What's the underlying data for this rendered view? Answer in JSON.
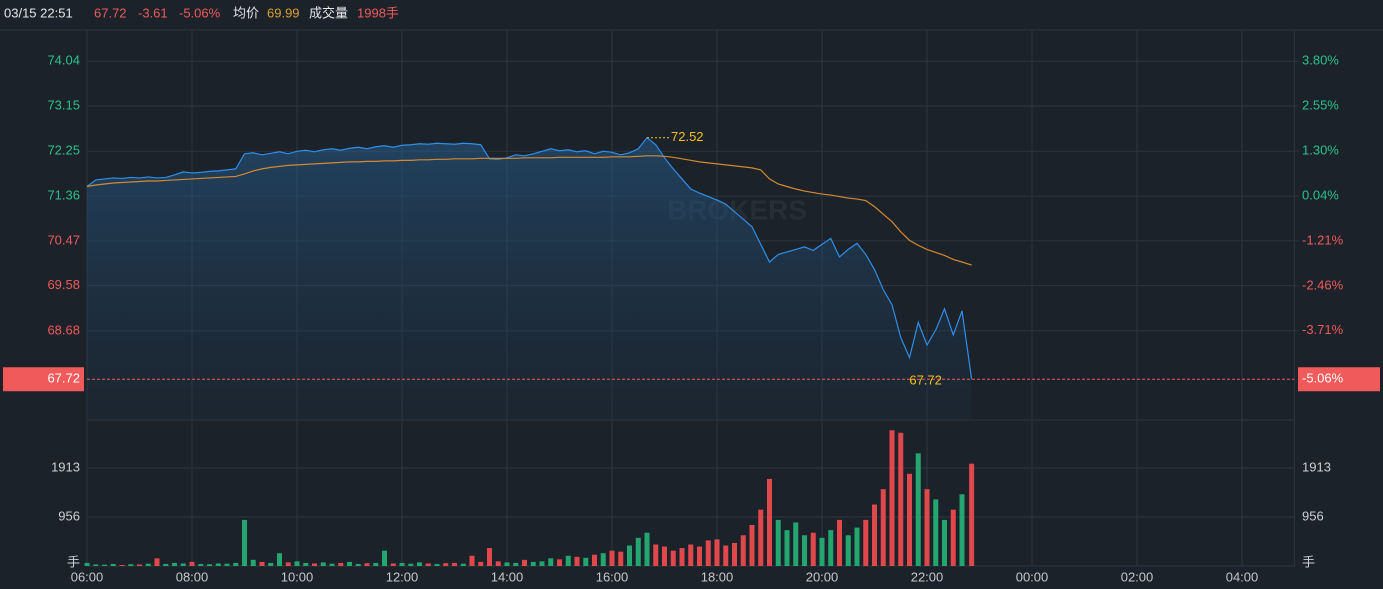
{
  "header": {
    "time": "03/15 22:51",
    "change": "-3.61",
    "avg_label": "均价",
    "avg": "69.99",
    "volume_label": "成交量",
    "volume": "1998手"
  },
  "watermark": "BROKERS",
  "chart_data": [
    {
      "type": "line",
      "x": [
        0,
        10,
        20,
        30,
        40,
        50,
        60,
        70,
        80,
        90,
        100,
        110,
        120,
        130,
        140,
        150,
        160,
        170,
        180,
        190,
        200,
        210,
        220,
        230,
        240,
        250,
        260,
        270,
        280,
        290,
        300,
        310,
        320,
        330,
        340,
        350,
        360,
        370,
        380,
        390,
        400,
        410,
        420,
        430,
        440,
        450,
        460,
        470,
        480,
        490,
        500,
        510,
        520,
        530,
        540,
        550,
        560,
        570,
        580,
        590,
        600,
        610,
        620,
        630,
        640,
        650,
        660,
        670,
        680,
        690,
        700,
        710,
        720,
        730,
        740,
        750,
        760,
        770,
        780,
        790,
        800,
        810,
        820,
        830,
        840,
        850,
        860,
        870,
        880,
        890,
        900,
        910,
        920,
        930,
        940,
        950,
        960,
        970,
        980,
        990,
        1000,
        1011
      ],
      "series": [
        {
          "color": "#2f8ee8",
          "values": [
            71.55,
            71.68,
            71.7,
            71.72,
            71.71,
            71.73,
            71.72,
            71.74,
            71.72,
            71.73,
            71.78,
            71.84,
            71.82,
            71.83,
            71.85,
            71.86,
            71.88,
            71.9,
            72.2,
            72.22,
            72.18,
            72.21,
            72.24,
            72.2,
            72.25,
            72.27,
            72.24,
            72.28,
            72.3,
            72.27,
            72.31,
            72.33,
            72.3,
            72.34,
            72.36,
            72.33,
            72.37,
            72.38,
            72.4,
            72.39,
            72.41,
            72.4,
            72.39,
            72.41,
            72.4,
            72.38,
            72.1,
            72.09,
            72.12,
            72.18,
            72.16,
            72.2,
            72.25,
            72.3,
            72.26,
            72.28,
            72.24,
            72.26,
            72.2,
            72.25,
            72.23,
            72.18,
            72.22,
            72.3,
            72.52,
            72.38,
            72.12,
            71.9,
            71.7,
            71.5,
            71.42,
            71.35,
            71.28,
            71.2,
            71.05,
            70.9,
            70.75,
            70.4,
            70.05,
            70.2,
            70.25,
            70.3,
            70.35,
            70.28,
            70.4,
            70.52,
            70.15,
            70.3,
            70.42,
            70.2,
            69.9,
            69.5,
            69.2,
            68.55,
            68.15,
            68.85,
            68.4,
            68.7,
            69.12,
            68.6,
            69.08,
            67.72
          ]
        },
        {
          "color": "#d4892e",
          "values": [
            71.55,
            71.58,
            71.6,
            71.62,
            71.63,
            71.64,
            71.65,
            71.66,
            71.66,
            71.67,
            71.68,
            71.69,
            71.7,
            71.71,
            71.72,
            71.73,
            71.74,
            71.75,
            71.8,
            71.86,
            71.9,
            71.93,
            71.95,
            71.97,
            71.98,
            71.99,
            72.0,
            72.01,
            72.02,
            72.03,
            72.04,
            72.04,
            72.05,
            72.05,
            72.06,
            72.06,
            72.07,
            72.07,
            72.08,
            72.08,
            72.09,
            72.09,
            72.1,
            72.1,
            72.1,
            72.11,
            72.11,
            72.11,
            72.11,
            72.11,
            72.12,
            72.12,
            72.12,
            72.12,
            72.13,
            72.13,
            72.13,
            72.13,
            72.13,
            72.13,
            72.14,
            72.14,
            72.14,
            72.15,
            72.16,
            72.16,
            72.15,
            72.13,
            72.1,
            72.07,
            72.04,
            72.02,
            72.0,
            71.98,
            71.96,
            71.94,
            71.92,
            71.88,
            71.7,
            71.6,
            71.55,
            71.5,
            71.46,
            71.43,
            71.4,
            71.38,
            71.35,
            71.32,
            71.3,
            71.27,
            71.15,
            71.0,
            70.85,
            70.65,
            70.48,
            70.38,
            70.3,
            70.24,
            70.18,
            70.1,
            70.05,
            69.99
          ]
        }
      ],
      "xlim": [
        0,
        1380
      ],
      "xticks": [
        {
          "value": 0,
          "label": "06:00"
        },
        {
          "value": 120,
          "label": "08:00"
        },
        {
          "value": 240,
          "label": "10:00"
        },
        {
          "value": 360,
          "label": "12:00"
        },
        {
          "value": 480,
          "label": "14:00"
        },
        {
          "value": 600,
          "label": "16:00"
        },
        {
          "value": 720,
          "label": "18:00"
        },
        {
          "value": 840,
          "label": "20:00"
        },
        {
          "value": 960,
          "label": "22:00"
        },
        {
          "value": 1080,
          "label": "00:00"
        },
        {
          "value": 1200,
          "label": "02:00"
        },
        {
          "value": 1320,
          "label": "04:00"
        }
      ],
      "ylim": [
        66.91,
        74.66
      ],
      "yticks": [
        74.04,
        73.15,
        72.25,
        71.36,
        70.47,
        69.58,
        68.68
      ],
      "y2lim": [
        -6.2,
        4.67
      ],
      "y2ticks": [
        {
          "value": 3.8,
          "label": "3.80%"
        },
        {
          "value": 2.55,
          "label": "2.55%"
        },
        {
          "value": 1.3,
          "label": "1.30%"
        },
        {
          "value": 0.04,
          "label": "0.04%"
        },
        {
          "value": -1.21,
          "label": "-1.21%"
        },
        {
          "value": -2.46,
          "label": "-2.46%"
        },
        {
          "value": -3.71,
          "label": "-3.71%"
        }
      ],
      "current": 67.72,
      "current_pct": {
        "value": -5.06,
        "label": "-5.06%"
      },
      "annotations": [
        {
          "x": 640,
          "value": 72.52
        },
        {
          "x": 1011,
          "value": 67.72
        }
      ],
      "up_color": "#2bc28a",
      "down_color": "#f05a5a",
      "annotation_color": "#f2c21b",
      "grid": true
    },
    {
      "type": "bar",
      "values": [
        60,
        30,
        25,
        40,
        20,
        35,
        30,
        45,
        150,
        40,
        60,
        50,
        80,
        40,
        35,
        50,
        45,
        60,
        900,
        120,
        80,
        60,
        250,
        70,
        90,
        60,
        50,
        70,
        45,
        60,
        80,
        40,
        55,
        60,
        300,
        50,
        60,
        45,
        70,
        50,
        40,
        55,
        60,
        45,
        200,
        80,
        350,
        90,
        70,
        60,
        120,
        80,
        90,
        150,
        130,
        200,
        180,
        160,
        220,
        250,
        300,
        280,
        400,
        550,
        650,
        420,
        380,
        300,
        350,
        420,
        380,
        500,
        520,
        400,
        450,
        600,
        800,
        1100,
        1700,
        900,
        700,
        850,
        600,
        650,
        550,
        700,
        900,
        600,
        750,
        900,
        1200,
        1500,
        2650,
        2600,
        1800,
        2200,
        1500,
        1300,
        900,
        1100,
        1400,
        1998
      ],
      "ylim": [
        0,
        2850
      ],
      "yticks": [
        1913,
        956,
        {
          "value": 0,
          "label": "手"
        }
      ],
      "up_color": "#23a66f",
      "down_color": "#e0484c",
      "grid": true
    }
  ]
}
